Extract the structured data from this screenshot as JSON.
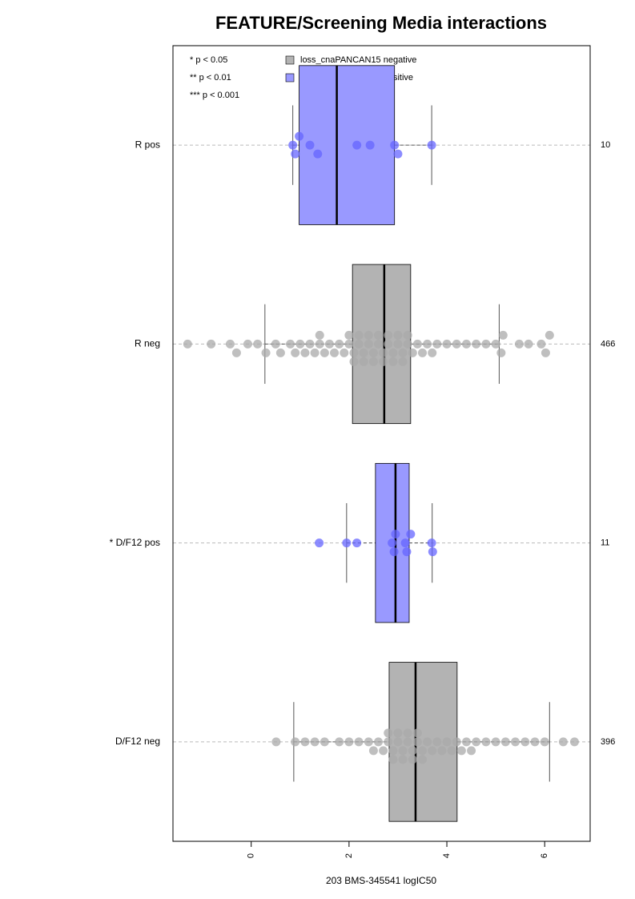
{
  "chart_data": {
    "type": "boxplot",
    "title": "FEATURE/Screening Media interactions",
    "xlabel": "203 BMS-345541 logIC50",
    "xlim": [
      -1.6,
      6.93
    ],
    "xticks": [
      0,
      2,
      4,
      6
    ],
    "notes": [
      "* p < 0.05",
      "** p < 0.01",
      "*** p < 0.001"
    ],
    "legend": [
      {
        "name": "loss_cnaPANCAN15 negative",
        "color": "#b3b3b3"
      },
      {
        "name": "loss_cnaPANCAN15 positive",
        "color": "#9999ff"
      }
    ],
    "groups": [
      {
        "label": "R pos",
        "count": 10,
        "color": "#9999ff",
        "point_color": "#6666ff",
        "whisker_low": 0.85,
        "q1": 0.98,
        "median": 1.75,
        "q3": 2.93,
        "whisker_high": 3.69,
        "points": [
          0.85,
          0.9,
          0.98,
          1.2,
          1.36,
          2.16,
          2.43,
          2.93,
          3.0,
          3.69
        ]
      },
      {
        "label": "R neg",
        "count": 466,
        "color": "#b3b3b3",
        "point_color": "#aaaaaa",
        "whisker_low": 0.28,
        "q1": 2.07,
        "median": 2.72,
        "q3": 3.26,
        "whisker_high": 5.07,
        "points": [
          -1.3,
          -0.82,
          -0.43,
          -0.3,
          -0.07,
          0.13,
          0.3,
          0.5,
          0.6,
          0.8,
          0.9,
          1.0,
          1.1,
          1.2,
          1.3,
          1.4,
          1.4,
          1.5,
          1.6,
          1.7,
          1.8,
          1.9,
          2.0,
          2.0,
          2.1,
          2.1,
          2.2,
          2.2,
          2.3,
          2.3,
          2.4,
          2.4,
          2.5,
          2.5,
          2.6,
          2.6,
          2.7,
          2.7,
          2.8,
          2.8,
          2.9,
          2.9,
          3.0,
          3.0,
          3.1,
          3.1,
          3.2,
          3.2,
          3.3,
          3.4,
          3.5,
          3.6,
          3.7,
          3.8,
          4.0,
          4.2,
          4.4,
          4.6,
          4.8,
          5.0,
          5.11,
          5.15,
          5.48,
          5.67,
          5.93,
          6.02,
          6.1
        ]
      },
      {
        "label": "* D/F12 pos",
        "count": 11,
        "color": "#9999ff",
        "point_color": "#6666ff",
        "whisker_low": 1.95,
        "q1": 2.54,
        "median": 2.95,
        "q3": 3.23,
        "whisker_high": 3.7,
        "points": [
          1.39,
          1.95,
          2.16,
          2.88,
          2.92,
          2.95,
          3.15,
          3.18,
          3.26,
          3.69,
          3.71
        ]
      },
      {
        "label": "D/F12 neg",
        "count": 396,
        "color": "#b3b3b3",
        "point_color": "#aaaaaa",
        "whisker_low": 0.87,
        "q1": 2.82,
        "median": 3.36,
        "q3": 4.21,
        "whisker_high": 6.1,
        "points": [
          0.51,
          0.9,
          1.1,
          1.3,
          1.5,
          1.8,
          2.0,
          2.2,
          2.4,
          2.5,
          2.6,
          2.7,
          2.8,
          2.8,
          2.9,
          2.9,
          3.0,
          3.0,
          3.1,
          3.1,
          3.2,
          3.2,
          3.3,
          3.3,
          3.4,
          3.4,
          3.5,
          3.5,
          3.6,
          3.7,
          3.8,
          3.9,
          4.0,
          4.1,
          4.2,
          4.3,
          4.4,
          4.5,
          4.6,
          4.8,
          5.0,
          5.2,
          5.4,
          5.6,
          5.8,
          6.0,
          6.38,
          6.61
        ]
      }
    ]
  }
}
